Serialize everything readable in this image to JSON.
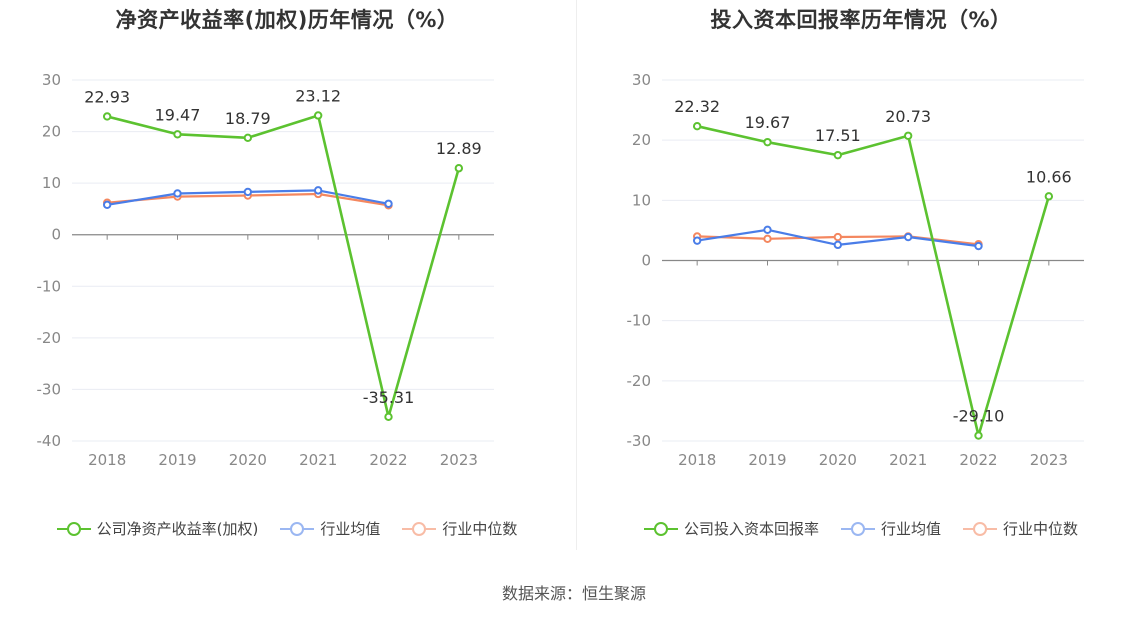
{
  "source": "数据来源：恒生聚源",
  "colors": {
    "company": "#5cc230",
    "avg": "#4a7de8",
    "median": "#f4875f",
    "grid": "#e9ecf3",
    "axis": "#888888"
  },
  "chart_data": [
    {
      "type": "line",
      "title": "净资产收益率(加权)历年情况（%）",
      "categories": [
        "2018",
        "2019",
        "2020",
        "2021",
        "2022",
        "2023"
      ],
      "ylim": [
        -40,
        30
      ],
      "yticks": [
        30,
        20,
        10,
        0,
        -10,
        -20,
        -30,
        -40
      ],
      "grid": true,
      "legend_position": "bottom",
      "series": [
        {
          "name": "公司净资产收益率(加权)",
          "values": [
            22.93,
            19.47,
            18.79,
            23.12,
            -35.31,
            12.89
          ],
          "labels": [
            "22.93",
            "19.47",
            "18.79",
            "23.12",
            "-35.31",
            "12.89"
          ]
        },
        {
          "name": "行业均值",
          "values": [
            5.8,
            8.0,
            8.3,
            8.6,
            6.0,
            null
          ]
        },
        {
          "name": "行业中位数",
          "values": [
            6.2,
            7.4,
            7.6,
            7.9,
            5.7,
            null
          ]
        }
      ]
    },
    {
      "type": "line",
      "title": "投入资本回报率历年情况（%）",
      "categories": [
        "2018",
        "2019",
        "2020",
        "2021",
        "2022",
        "2023"
      ],
      "ylim": [
        -30,
        30
      ],
      "yticks": [
        30,
        20,
        10,
        0,
        -10,
        -20,
        -30
      ],
      "grid": true,
      "legend_position": "bottom",
      "series": [
        {
          "name": "公司投入资本回报率",
          "values": [
            22.32,
            19.67,
            17.51,
            20.73,
            -29.1,
            10.66
          ],
          "labels": [
            "22.32",
            "19.67",
            "17.51",
            "20.73",
            "-29.10",
            "10.66"
          ]
        },
        {
          "name": "行业均值",
          "values": [
            3.3,
            5.1,
            2.6,
            3.9,
            2.4,
            null
          ]
        },
        {
          "name": "行业中位数",
          "values": [
            4.0,
            3.6,
            3.9,
            4.0,
            2.7,
            null
          ]
        }
      ]
    }
  ]
}
